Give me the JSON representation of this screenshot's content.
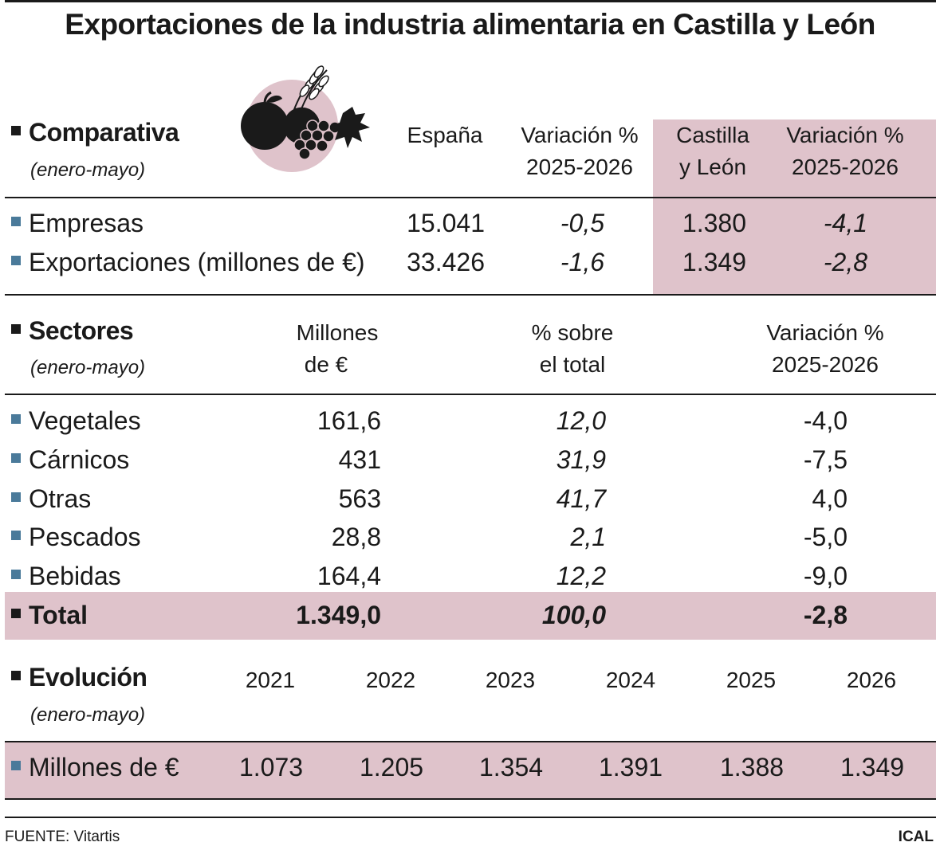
{
  "title": "Exportaciones de la industria alimentaria en Castilla y León",
  "colors": {
    "highlight": "#dfc3cb",
    "bullet": "#4a7a9a",
    "text": "#1a1a1a"
  },
  "illustration": "food-basket-icon",
  "comparativa": {
    "title": "Comparativa",
    "subtitle": "(enero-mayo)",
    "headers": {
      "espana": "España",
      "var_espana": [
        "Variación %",
        "2025-2026"
      ],
      "cyl": [
        "Castilla",
        "y León"
      ],
      "var_cyl": [
        "Variación %",
        "2025-2026"
      ]
    },
    "rows": [
      {
        "label": "Empresas",
        "espana": "15.041",
        "var_espana": "-0,5",
        "cyl": "1.380",
        "var_cyl": "-4,1"
      },
      {
        "label": "Exportaciones (millones de €)",
        "espana": "33.426",
        "var_espana": "-1,6",
        "cyl": "1.349",
        "var_cyl": "-2,8"
      }
    ]
  },
  "sectores": {
    "title": "Sectores",
    "subtitle": "(enero-mayo)",
    "headers": {
      "millones": [
        "Millones",
        "de €"
      ],
      "pct": [
        "% sobre",
        "el total"
      ],
      "variacion": [
        "Variación %",
        "2025-2026"
      ]
    },
    "rows": [
      {
        "label": "Vegetales",
        "millones": "161,6",
        "pct": "12,0",
        "variacion": "-4,0"
      },
      {
        "label": "Cárnicos",
        "millones": "431",
        "pct": "31,9",
        "variacion": "-7,5"
      },
      {
        "label": "Otras",
        "millones": "563",
        "pct": "41,7",
        "variacion": "4,0"
      },
      {
        "label": "Pescados",
        "millones": "28,8",
        "pct": "2,1",
        "variacion": "-5,0"
      },
      {
        "label": "Bebidas",
        "millones": "164,4",
        "pct": "12,2",
        "variacion": "-9,0"
      }
    ],
    "total": {
      "label": "Total",
      "millones": "1.349,0",
      "pct": "100,0",
      "variacion": "-2,8"
    }
  },
  "evolucion": {
    "title": "Evolución",
    "subtitle": "(enero-mayo)",
    "years": [
      "2021",
      "2022",
      "2023",
      "2024",
      "2025",
      "2026"
    ],
    "row_label": "Millones de €",
    "values": [
      "1.073",
      "1.205",
      "1.354",
      "1.391",
      "1.388",
      "1.349"
    ]
  },
  "footer": {
    "source": "FUENTE: Vitartis",
    "credit": "ICAL"
  }
}
